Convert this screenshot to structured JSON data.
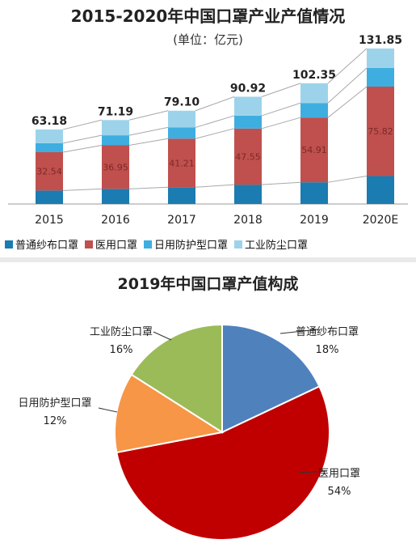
{
  "chart_data": [
    {
      "type": "bar",
      "stacked": true,
      "title": "2015-2020年中国口罩产业产值情况",
      "subtitle": "(单位：亿元)",
      "categories": [
        "2015",
        "2016",
        "2017",
        "2018",
        "2019",
        "2020E"
      ],
      "totals": [
        63.18,
        71.19,
        79.1,
        90.92,
        102.35,
        131.85
      ],
      "totals_text": [
        "63.18",
        "71.19",
        "79.10",
        "90.92",
        "102.35",
        "131.85"
      ],
      "series": [
        {
          "name": "普通纱布口罩",
          "color": "#1a7cb0",
          "values": [
            11.4,
            12.8,
            14.2,
            16.4,
            18.4,
            23.7
          ]
        },
        {
          "name": "医用口罩",
          "color": "#c0504d",
          "values": [
            32.54,
            36.95,
            41.21,
            47.55,
            54.91,
            75.82
          ],
          "labels": [
            "32.54",
            "36.95",
            "41.21",
            "47.55",
            "54.91",
            "75.82"
          ]
        },
        {
          "name": "日用防护型口罩",
          "color": "#3eaee0",
          "values": [
            7.6,
            8.5,
            9.5,
            10.9,
            12.3,
            15.8
          ]
        },
        {
          "name": "工业防尘口罩",
          "color": "#9dd3ea",
          "values": [
            11.64,
            12.94,
            14.19,
            16.07,
            16.74,
            16.53
          ]
        }
      ],
      "ylim": [
        0,
        140
      ],
      "grid": false,
      "legend": "bottom"
    },
    {
      "type": "pie",
      "title": "2019年中国口罩产值构成",
      "slices": [
        {
          "name": "普通纱布口罩",
          "value": 18,
          "label": "18%",
          "color": "#4f81bd"
        },
        {
          "name": "医用口罩",
          "value": 54,
          "label": "54%",
          "color": "#c00000"
        },
        {
          "name": "日用防护型口罩",
          "value": 12,
          "label": "12%",
          "color": "#f79646"
        },
        {
          "name": "工业防尘口罩",
          "value": 16,
          "label": "16%",
          "color": "#9bbb59"
        }
      ]
    }
  ]
}
